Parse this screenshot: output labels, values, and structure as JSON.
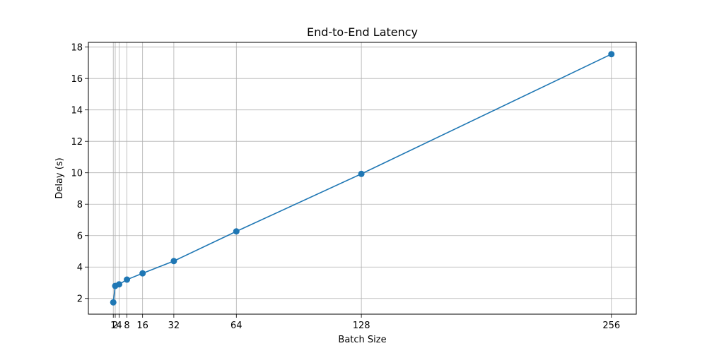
{
  "chart_data": {
    "type": "line",
    "title": "End-to-End Latency",
    "xlabel": "Batch Size",
    "ylabel": "Delay (s)",
    "x": [
      1,
      2,
      4,
      8,
      16,
      32,
      64,
      128,
      256
    ],
    "x_tick_labels": [
      "1",
      "2",
      "4",
      "8",
      "16",
      "32",
      "64",
      "128",
      "256"
    ],
    "series": [
      {
        "values": [
          1.75,
          2.8,
          2.9,
          3.2,
          3.6,
          4.38,
          6.27,
          9.93,
          17.55
        ],
        "color": "#1f77b4",
        "marker": "circle"
      }
    ],
    "xlim": [
      -11.75,
      268.75
    ],
    "ylim": [
      1.0,
      18.3
    ],
    "y_ticks": [
      2,
      4,
      6,
      8,
      10,
      12,
      14,
      16,
      18
    ],
    "grid": true,
    "legend": "none"
  }
}
